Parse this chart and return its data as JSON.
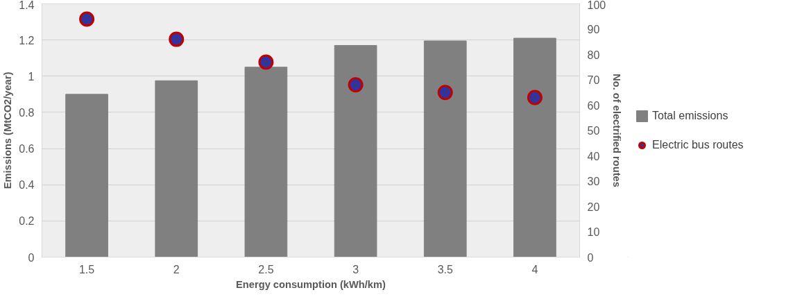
{
  "chart_data": {
    "type": "bar",
    "xlabel": "Energy consumption (kWh/km)",
    "ylabel": "Emissions (MtCO2/year)",
    "y2label": "No. of electrified routes",
    "categories": [
      "1.5",
      "2",
      "2.5",
      "3",
      "3.5",
      "4"
    ],
    "series": [
      {
        "name": "Total emissions",
        "color": "#808080",
        "values": [
          0.9,
          0.975,
          1.05,
          1.17,
          1.195,
          1.21
        ]
      },
      {
        "name": "Electric bus routes",
        "type": "scatter",
        "axis": "y2",
        "color": "#33339a",
        "values": [
          94,
          86,
          77,
          68,
          65,
          63
        ]
      }
    ],
    "ylim": [
      0,
      1.4
    ],
    "yticks": [
      0,
      0.2,
      0.4,
      0.6,
      0.8,
      1,
      1.2,
      1.4
    ],
    "y2lim": [
      0,
      100
    ],
    "y2ticks": [
      0,
      10,
      20,
      30,
      40,
      50,
      60,
      70,
      80,
      90,
      100
    ],
    "grid": "y",
    "legend": "right",
    "marker": "circle"
  }
}
